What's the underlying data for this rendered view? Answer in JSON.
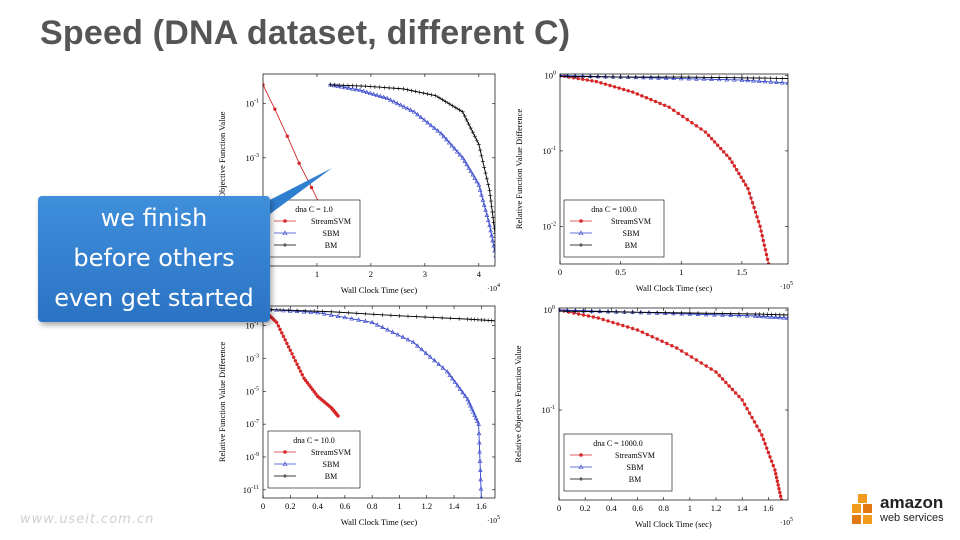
{
  "slide": {
    "title": "Speed (DNA dataset, different C)"
  },
  "callout": {
    "lines": [
      "we finish",
      "before others",
      "even get started"
    ]
  },
  "watermark": "www.useit.com.cn",
  "logo": {
    "name": "amazon",
    "sub": "web services"
  },
  "colors": {
    "streamsvm": "#d62728",
    "sbm": "#3344cc",
    "bm": "#000000",
    "callout": "#2f7fd0"
  },
  "chart_data": [
    {
      "type": "line",
      "legend_title": "dna C = 1.0",
      "xlabel": "Wall Clock Time (sec)",
      "ylabel": "Relative Objective Function Value",
      "x_multiplier": "·10^4",
      "yscale": "log",
      "xlim": [
        0,
        4.3
      ],
      "ylim": [
        -7,
        0.1
      ],
      "xticks": [
        {
          "v": 1,
          "l": "1"
        },
        {
          "v": 2,
          "l": "2"
        },
        {
          "v": 3,
          "l": "3"
        },
        {
          "v": 4,
          "l": "4"
        }
      ],
      "yticks": [
        {
          "v": -1,
          "l": "10^-1"
        },
        {
          "v": -3,
          "l": "10^-3"
        },
        {
          "v": -5,
          "l": "10^-5"
        }
      ],
      "series": [
        {
          "name": "StreamSVM",
          "x": [
            0,
            0.22,
            0.45,
            0.67,
            0.9,
            1.12,
            1.3
          ],
          "y": [
            -0.3,
            -1.2,
            -2.2,
            -3.2,
            -4.1,
            -5.0,
            -5.5
          ]
        },
        {
          "name": "SBM",
          "x": [
            1.25,
            1.8,
            2.3,
            2.8,
            3.3,
            3.7,
            4.0,
            4.2,
            4.35
          ],
          "y": [
            -0.3,
            -0.5,
            -0.8,
            -1.3,
            -2.1,
            -3.0,
            -4.0,
            -5.5,
            -7.0
          ]
        },
        {
          "name": "BM",
          "x": [
            1.25,
            1.9,
            2.6,
            3.2,
            3.7,
            4.0,
            4.2,
            4.3,
            4.35
          ],
          "y": [
            -0.3,
            -0.35,
            -0.45,
            -0.7,
            -1.3,
            -2.5,
            -4.2,
            -5.8,
            -7.0
          ]
        }
      ]
    },
    {
      "type": "line",
      "legend_title": "dna C = 100.0",
      "xlabel": "Wall Clock Time (sec)",
      "ylabel": "Relative Function Value Difference",
      "x_multiplier": "·10^5",
      "yscale": "log",
      "xlim": [
        0,
        1.88
      ],
      "ylim": [
        -2.5,
        0.02
      ],
      "xticks": [
        {
          "v": 0,
          "l": "0"
        },
        {
          "v": 0.5,
          "l": "0.5"
        },
        {
          "v": 1,
          "l": "1"
        },
        {
          "v": 1.5,
          "l": "1.5"
        }
      ],
      "yticks": [
        {
          "v": 0,
          "l": "10^0"
        },
        {
          "v": -1,
          "l": "10^-1"
        },
        {
          "v": -2,
          "l": "10^-2"
        }
      ],
      "series": [
        {
          "name": "StreamSVM",
          "x": [
            0,
            0.3,
            0.6,
            0.9,
            1.2,
            1.4,
            1.55,
            1.65,
            1.72
          ],
          "y": [
            0,
            -0.08,
            -0.22,
            -0.42,
            -0.75,
            -1.1,
            -1.5,
            -2.0,
            -2.5
          ]
        },
        {
          "name": "SBM",
          "x": [
            0,
            0.5,
            1.0,
            1.5,
            1.88
          ],
          "y": [
            0,
            -0.02,
            -0.04,
            -0.06,
            -0.1
          ]
        },
        {
          "name": "BM",
          "x": [
            0,
            0.5,
            1.0,
            1.5,
            1.88
          ],
          "y": [
            -0.01,
            -0.02,
            -0.02,
            -0.03,
            -0.04
          ]
        }
      ]
    },
    {
      "type": "line",
      "legend_title": "dna C = 10.0",
      "xlabel": "Wall Clock Time (sec)",
      "ylabel": "Relative Function Value Difference",
      "x_multiplier": "·10^5",
      "yscale": "log",
      "xlim": [
        0,
        1.7
      ],
      "ylim": [
        -11.5,
        0.2
      ],
      "xticks": [
        {
          "v": 0,
          "l": "0"
        },
        {
          "v": 0.2,
          "l": "0.2"
        },
        {
          "v": 0.4,
          "l": "0.4"
        },
        {
          "v": 0.6,
          "l": "0.6"
        },
        {
          "v": 0.8,
          "l": "0.8"
        },
        {
          "v": 1,
          "l": "1"
        },
        {
          "v": 1.2,
          "l": "1.2"
        },
        {
          "v": 1.4,
          "l": "1.4"
        },
        {
          "v": 1.6,
          "l": "1.6"
        }
      ],
      "yticks": [
        {
          "v": -1,
          "l": "10^-1"
        },
        {
          "v": -3,
          "l": "10^-3"
        },
        {
          "v": -5,
          "l": "10^-5"
        },
        {
          "v": -7,
          "l": "10^-7"
        },
        {
          "v": -9,
          "l": "10^-9"
        },
        {
          "v": -11,
          "l": "10^-11"
        }
      ],
      "series": [
        {
          "name": "StreamSVM",
          "x": [
            0,
            0.1,
            0.2,
            0.3,
            0.4,
            0.5,
            0.55
          ],
          "y": [
            0,
            -0.8,
            -2.5,
            -4.2,
            -5.3,
            -6.0,
            -6.5
          ]
        },
        {
          "name": "SBM",
          "x": [
            0,
            0.4,
            0.8,
            1.1,
            1.35,
            1.5,
            1.58,
            1.6
          ],
          "y": [
            0,
            -0.2,
            -0.8,
            -2.0,
            -3.8,
            -5.5,
            -7.0,
            -11.5
          ]
        },
        {
          "name": "BM",
          "x": [
            0,
            0.5,
            1.0,
            1.5,
            1.7
          ],
          "y": [
            0,
            -0.15,
            -0.4,
            -0.6,
            -0.7
          ]
        }
      ]
    },
    {
      "type": "line",
      "legend_title": "dna C = 1000.0",
      "xlabel": "Wall Clock Time (sec)",
      "ylabel": "Relative Objective Function Value",
      "x_multiplier": "·10^5",
      "yscale": "log",
      "xlim": [
        0,
        1.75
      ],
      "ylim": [
        -1.9,
        0.02
      ],
      "xticks": [
        {
          "v": 0,
          "l": "0"
        },
        {
          "v": 0.2,
          "l": "0.2"
        },
        {
          "v": 0.4,
          "l": "0.4"
        },
        {
          "v": 0.6,
          "l": "0.6"
        },
        {
          "v": 0.8,
          "l": "0.8"
        },
        {
          "v": 1,
          "l": "1"
        },
        {
          "v": 1.2,
          "l": "1.2"
        },
        {
          "v": 1.4,
          "l": "1.4"
        },
        {
          "v": 1.6,
          "l": "1.6"
        }
      ],
      "yticks": [
        {
          "v": 0,
          "l": "10^0"
        },
        {
          "v": -1,
          "l": "10^-1"
        }
      ],
      "series": [
        {
          "name": "StreamSVM",
          "x": [
            0,
            0.3,
            0.6,
            0.9,
            1.2,
            1.4,
            1.55,
            1.65,
            1.7
          ],
          "y": [
            0,
            -0.08,
            -0.2,
            -0.38,
            -0.62,
            -0.9,
            -1.25,
            -1.6,
            -1.9
          ]
        },
        {
          "name": "SBM",
          "x": [
            0,
            0.5,
            1.0,
            1.5,
            1.75
          ],
          "y": [
            0,
            -0.02,
            -0.04,
            -0.06,
            -0.08
          ]
        },
        {
          "name": "BM",
          "x": [
            0,
            0.5,
            1.0,
            1.5,
            1.75
          ],
          "y": [
            -0.01,
            -0.02,
            -0.03,
            -0.04,
            -0.05
          ]
        }
      ]
    }
  ]
}
